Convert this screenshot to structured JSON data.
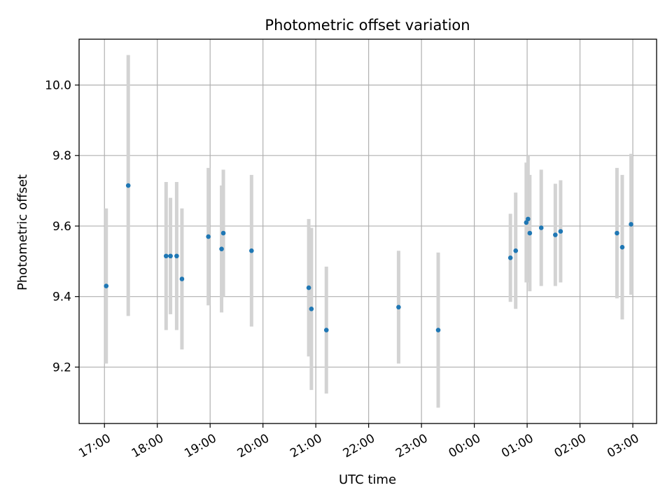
{
  "chart_data": {
    "type": "scatter",
    "title": "Photometric offset variation",
    "xlabel": "UTC time",
    "ylabel": "Photometric offset",
    "x_tick_labels": [
      "17:00",
      "18:00",
      "19:00",
      "20:00",
      "21:00",
      "22:00",
      "23:00",
      "00:00",
      "01:00",
      "02:00",
      "03:00"
    ],
    "y_tick_labels": [
      "9.2",
      "9.4",
      "9.6",
      "9.8",
      "10.0"
    ],
    "x_ticks_hours": [
      17,
      18,
      19,
      20,
      21,
      22,
      23,
      24,
      25,
      26,
      27
    ],
    "y_ticks": [
      9.2,
      9.4,
      9.6,
      9.8,
      10.0
    ],
    "xlim_hours": [
      16.52,
      27.45
    ],
    "ylim": [
      9.04,
      10.13
    ],
    "grid": true,
    "point_color": "#1f77b4",
    "errorbar_color": "#d3d3d3",
    "points": [
      {
        "time": "17:02",
        "y": 9.43,
        "err": 0.22
      },
      {
        "time": "17:27",
        "y": 9.715,
        "err": 0.37
      },
      {
        "time": "18:10",
        "y": 9.515,
        "err": 0.21
      },
      {
        "time": "18:15",
        "y": 9.515,
        "err": 0.165
      },
      {
        "time": "18:22",
        "y": 9.515,
        "err": 0.21
      },
      {
        "time": "18:28",
        "y": 9.45,
        "err": 0.2
      },
      {
        "time": "18:58",
        "y": 9.57,
        "err": 0.195
      },
      {
        "time": "19:13",
        "y": 9.535,
        "err": 0.18
      },
      {
        "time": "19:15",
        "y": 9.58,
        "err": 0.18
      },
      {
        "time": "19:47",
        "y": 9.53,
        "err": 0.215
      },
      {
        "time": "20:52",
        "y": 9.425,
        "err": 0.195
      },
      {
        "time": "20:55",
        "y": 9.365,
        "err": 0.23
      },
      {
        "time": "21:12",
        "y": 9.305,
        "err": 0.18
      },
      {
        "time": "22:34",
        "y": 9.37,
        "err": 0.16
      },
      {
        "time": "23:19",
        "y": 9.305,
        "err": 0.22
      },
      {
        "time": "00:41",
        "y": 9.51,
        "err": 0.125
      },
      {
        "time": "00:47",
        "y": 9.53,
        "err": 0.165
      },
      {
        "time": "00:59",
        "y": 9.61,
        "err": 0.17
      },
      {
        "time": "01:01",
        "y": 9.62,
        "err": 0.18
      },
      {
        "time": "01:03",
        "y": 9.58,
        "err": 0.165
      },
      {
        "time": "01:16",
        "y": 9.595,
        "err": 0.165
      },
      {
        "time": "01:32",
        "y": 9.575,
        "err": 0.145
      },
      {
        "time": "01:38",
        "y": 9.585,
        "err": 0.145
      },
      {
        "time": "02:42",
        "y": 9.58,
        "err": 0.185
      },
      {
        "time": "02:48",
        "y": 9.54,
        "err": 0.205
      },
      {
        "time": "02:58",
        "y": 9.605,
        "err": 0.2
      }
    ]
  }
}
